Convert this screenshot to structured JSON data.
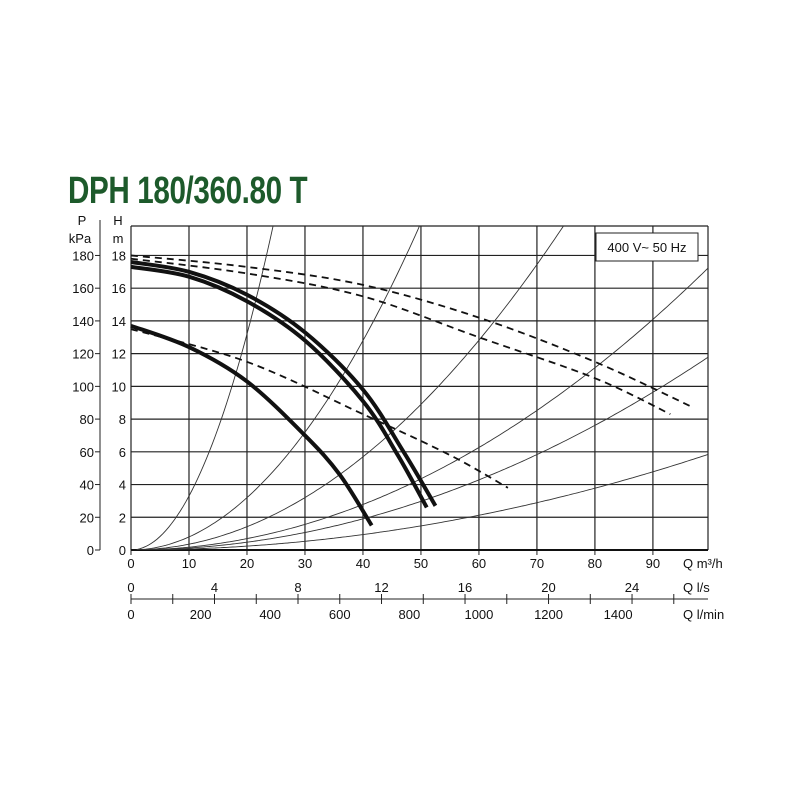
{
  "chart_data": {
    "type": "line",
    "title": "DPH 180/360.80 T",
    "annotation": "400 V~ 50 Hz",
    "xlabel": "Q m³/h",
    "ylabel": "H m",
    "ylabel_secondary": "P kPa",
    "xlim": [
      0,
      99.5
    ],
    "ylim": [
      0,
      19.8
    ],
    "grid": true,
    "x_ticks": [
      0,
      10,
      20,
      30,
      40,
      50,
      60,
      70,
      80,
      90
    ],
    "y_ticks": [
      0,
      2,
      4,
      6,
      8,
      10,
      12,
      14,
      16,
      18
    ],
    "p_ticks": [
      0,
      20,
      40,
      60,
      80,
      100,
      120,
      140,
      160,
      180
    ],
    "p_label_top": "P",
    "p_label_unit": "kPa",
    "h_label_top": "H",
    "h_label_unit": "m",
    "secondary_x_axes": [
      {
        "label": "Q l/s",
        "ticks": [
          0,
          4,
          8,
          12,
          16,
          20,
          24
        ],
        "minor_step": 2,
        "max": 26
      },
      {
        "label": "Q l/min",
        "ticks": [
          0,
          200,
          400,
          600,
          800,
          1000,
          1200,
          1400
        ]
      }
    ],
    "series": [
      {
        "style": "solid",
        "points": [
          [
            0,
            17.6
          ],
          [
            10,
            17.0
          ],
          [
            20,
            15.6
          ],
          [
            30,
            13.3
          ],
          [
            40,
            9.8
          ],
          [
            47,
            6.0
          ],
          [
            52.5,
            2.7
          ]
        ]
      },
      {
        "style": "solid",
        "points": [
          [
            0,
            17.3
          ],
          [
            10,
            16.7
          ],
          [
            20,
            15.2
          ],
          [
            30,
            12.8
          ],
          [
            40,
            9.1
          ],
          [
            46,
            5.8
          ],
          [
            51,
            2.6
          ]
        ]
      },
      {
        "style": "solid",
        "points": [
          [
            0,
            13.7
          ],
          [
            10,
            12.4
          ],
          [
            20,
            10.3
          ],
          [
            30,
            7.0
          ],
          [
            36,
            4.6
          ],
          [
            41.5,
            1.5
          ]
        ]
      },
      {
        "style": "dashed",
        "points": [
          [
            0,
            18.0
          ],
          [
            20,
            17.3
          ],
          [
            40,
            16.2
          ],
          [
            60,
            14.2
          ],
          [
            80,
            11.5
          ],
          [
            97,
            8.7
          ]
        ]
      },
      {
        "style": "dashed",
        "points": [
          [
            0,
            17.8
          ],
          [
            20,
            16.9
          ],
          [
            40,
            15.5
          ],
          [
            60,
            13.0
          ],
          [
            80,
            10.5
          ],
          [
            93,
            8.3
          ]
        ]
      },
      {
        "style": "dashed",
        "points": [
          [
            0,
            13.5
          ],
          [
            20,
            11.5
          ],
          [
            40,
            8.3
          ],
          [
            55,
            5.8
          ],
          [
            65,
            3.8
          ]
        ]
      }
    ],
    "system_curves_k": [
      0.033,
      0.008,
      0.00356,
      0.00174,
      0.00119,
      0.00059
    ]
  }
}
